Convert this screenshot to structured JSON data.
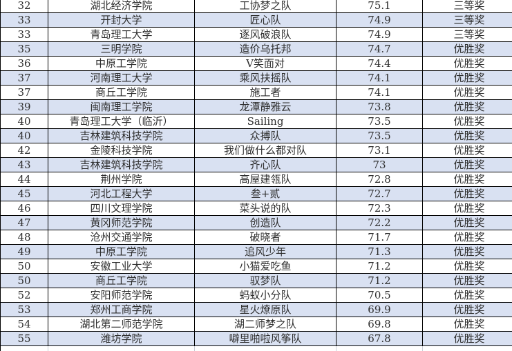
{
  "colors": {
    "shaded_row_bg": "#d9e1f2",
    "plain_row_bg": "#ffffff",
    "grid_border": "#000000",
    "faint_gridline": "#c9cdd6",
    "text": "#2e2e2e"
  },
  "table": {
    "rows": [
      {
        "rank": "32",
        "university": "湖北经济学院",
        "team": "工协梦之队",
        "score": "75.1",
        "award": "三等奖"
      },
      {
        "rank": "33",
        "university": "开封大学",
        "team": "匠心队",
        "score": "74.9",
        "award": "三等奖"
      },
      {
        "rank": "33",
        "university": "青岛理工大学",
        "team": "逐风破浪队",
        "score": "74.9",
        "award": "三等奖"
      },
      {
        "rank": "35",
        "university": "三明学院",
        "team": "造价乌托邦",
        "score": "74.7",
        "award": "优胜奖"
      },
      {
        "rank": "36",
        "university": "中原工学院",
        "team": "V笑面对",
        "score": "74.4",
        "award": "优胜奖"
      },
      {
        "rank": "37",
        "university": "河南理工大学",
        "team": "乘风扶摇队",
        "score": "74.1",
        "award": "优胜奖"
      },
      {
        "rank": "37",
        "university": "商丘工学院",
        "team": "施工者",
        "score": "74.1",
        "award": "优胜奖"
      },
      {
        "rank": "39",
        "university": "闽南理工学院",
        "team": "龙潭静雅云",
        "score": "73.8",
        "award": "优胜奖"
      },
      {
        "rank": "40",
        "university": "青岛理工大学（临沂）",
        "team": "Sailing",
        "score": "73.5",
        "award": "优胜奖"
      },
      {
        "rank": "40",
        "university": "吉林建筑科技学院",
        "team": "众搏队",
        "score": "73.5",
        "award": "优胜奖"
      },
      {
        "rank": "42",
        "university": "金陵科技学院",
        "team": "我们做什么都对队",
        "score": "73.1",
        "award": "优胜奖"
      },
      {
        "rank": "43",
        "university": "吉林建筑科技学院",
        "team": "齐心队",
        "score": "73",
        "award": "优胜奖"
      },
      {
        "rank": "44",
        "university": "荆州学院",
        "team": "高屋建瓴队",
        "score": "72.8",
        "award": "优胜奖"
      },
      {
        "rank": "45",
        "university": "河北工程大学",
        "team": "叁+贰",
        "score": "72.7",
        "award": "优胜奖"
      },
      {
        "rank": "46",
        "university": "四川文理学院",
        "team": "菜头说的队",
        "score": "72.3",
        "award": "优胜奖"
      },
      {
        "rank": "47",
        "university": "黄冈师范学院",
        "team": "创造队",
        "score": "72.2",
        "award": "优胜奖"
      },
      {
        "rank": "48",
        "university": "沧州交通学院",
        "team": "破晓者",
        "score": "71.7",
        "award": "优胜奖"
      },
      {
        "rank": "49",
        "university": "中原工学院",
        "team": "追风少年",
        "score": "71.3",
        "award": "优胜奖"
      },
      {
        "rank": "50",
        "university": "安徽工业大学",
        "team": "小猫爱吃鱼",
        "score": "71.2",
        "award": "优胜奖"
      },
      {
        "rank": "50",
        "university": "商丘工学院",
        "team": "驭梦队",
        "score": "71.2",
        "award": "优胜奖"
      },
      {
        "rank": "52",
        "university": "安阳师范学院",
        "team": "蚂蚁小分队",
        "score": "70.5",
        "award": "优胜奖"
      },
      {
        "rank": "53",
        "university": "郑州工商学院",
        "team": "星火燎原队",
        "score": "69.9",
        "award": "优胜奖"
      },
      {
        "rank": "54",
        "university": "湖北第二师范学院",
        "team": "湖二师梦之队",
        "score": "69.8",
        "award": "优胜奖"
      },
      {
        "rank": "55",
        "university": "潍坊学院",
        "team": "噼里啪啦风筝队",
        "score": "67.8",
        "award": "优胜奖"
      }
    ]
  }
}
